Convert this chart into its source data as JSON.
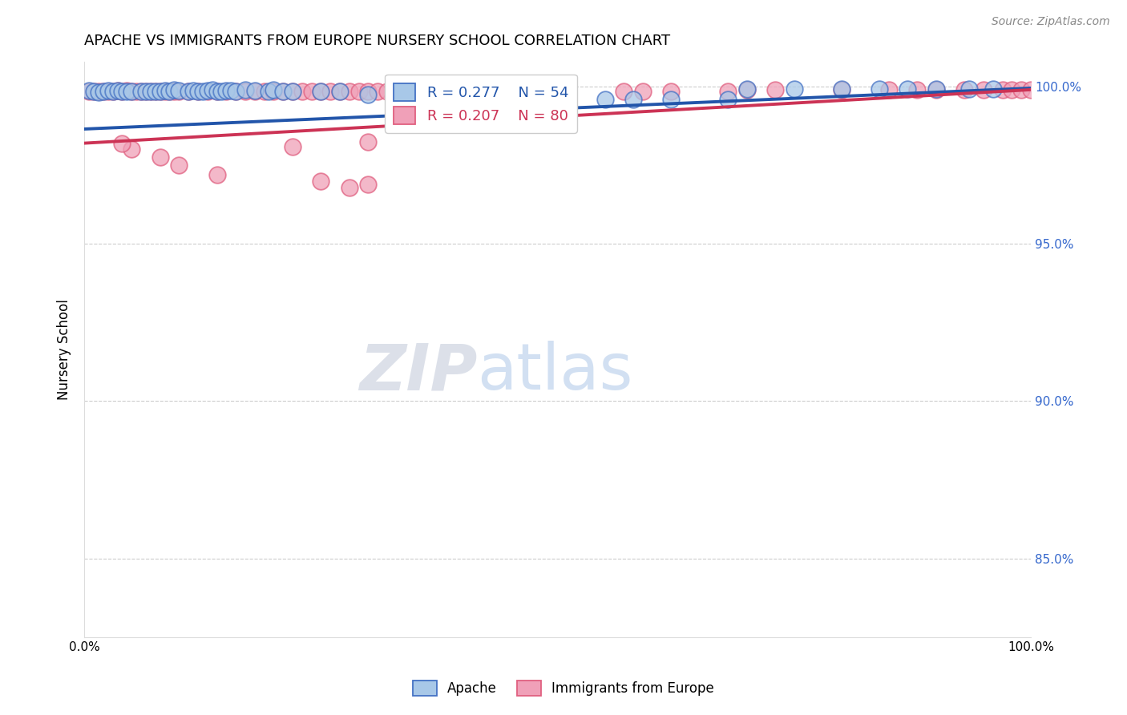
{
  "title": "APACHE VS IMMIGRANTS FROM EUROPE NURSERY SCHOOL CORRELATION CHART",
  "source": "Source: ZipAtlas.com",
  "ylabel": "Nursery School",
  "xlim": [
    0.0,
    1.0
  ],
  "ylim": [
    0.825,
    1.008
  ],
  "yticks": [
    0.85,
    0.9,
    0.95,
    1.0
  ],
  "ytick_labels": [
    "85.0%",
    "90.0%",
    "95.0%",
    "100.0%"
  ],
  "legend_blue_R": "R = 0.277",
  "legend_blue_N": "N = 54",
  "legend_pink_R": "R = 0.207",
  "legend_pink_N": "N = 80",
  "legend_label_blue": "Apache",
  "legend_label_pink": "Immigrants from Europe",
  "blue_color": "#a8c8e8",
  "pink_color": "#f0a0b8",
  "blue_edge_color": "#4472c4",
  "pink_edge_color": "#e06080",
  "blue_line_color": "#2255aa",
  "pink_line_color": "#cc3355",
  "watermark_zip": "ZIP",
  "watermark_atlas": "atlas",
  "blue_trend_x0": 0.0,
  "blue_trend_x1": 1.0,
  "blue_trend_y0": 0.9865,
  "blue_trend_y1": 0.9995,
  "pink_trend_x0": 0.0,
  "pink_trend_x1": 1.0,
  "pink_trend_y0": 0.982,
  "pink_trend_y1": 0.999,
  "apache_x": [
    0.005,
    0.01,
    0.015,
    0.02,
    0.025,
    0.03,
    0.035,
    0.04,
    0.045,
    0.05,
    0.06,
    0.065,
    0.07,
    0.075,
    0.08,
    0.085,
    0.09,
    0.095,
    0.1,
    0.11,
    0.115,
    0.12,
    0.125,
    0.13,
    0.135,
    0.14,
    0.145,
    0.15,
    0.155,
    0.16,
    0.17,
    0.18,
    0.195,
    0.2,
    0.21,
    0.22,
    0.25,
    0.27,
    0.3,
    0.35,
    0.42,
    0.5,
    0.55,
    0.58,
    0.62,
    0.68,
    0.7,
    0.75,
    0.8,
    0.84,
    0.87,
    0.9,
    0.935,
    0.96
  ],
  "apache_y": [
    0.9988,
    0.9985,
    0.9983,
    0.9985,
    0.9988,
    0.9985,
    0.9988,
    0.9985,
    0.9985,
    0.9985,
    0.9985,
    0.9985,
    0.9985,
    0.9985,
    0.9985,
    0.9988,
    0.9985,
    0.999,
    0.9988,
    0.9985,
    0.9988,
    0.9985,
    0.9985,
    0.9988,
    0.999,
    0.9985,
    0.9985,
    0.9988,
    0.9988,
    0.9985,
    0.999,
    0.9988,
    0.9985,
    0.999,
    0.9985,
    0.9985,
    0.9985,
    0.9985,
    0.9975,
    0.998,
    0.996,
    0.996,
    0.996,
    0.996,
    0.996,
    0.996,
    0.9993,
    0.9993,
    0.9993,
    0.9993,
    0.9993,
    0.9993,
    0.9993,
    0.9993
  ],
  "europe_x": [
    0.005,
    0.01,
    0.015,
    0.02,
    0.025,
    0.03,
    0.035,
    0.04,
    0.045,
    0.05,
    0.055,
    0.06,
    0.065,
    0.07,
    0.075,
    0.08,
    0.085,
    0.09,
    0.095,
    0.1,
    0.11,
    0.12,
    0.13,
    0.14,
    0.15,
    0.16,
    0.17,
    0.18,
    0.19,
    0.2,
    0.21,
    0.22,
    0.23,
    0.24,
    0.25,
    0.26,
    0.27,
    0.28,
    0.29,
    0.3,
    0.31,
    0.32,
    0.33,
    0.34,
    0.35,
    0.36,
    0.37,
    0.38,
    0.395,
    0.41,
    0.43,
    0.44,
    0.47,
    0.5,
    0.57,
    0.59,
    0.62,
    0.68,
    0.7,
    0.73,
    0.8,
    0.85,
    0.88,
    0.9,
    0.93,
    0.95,
    0.97,
    0.98,
    0.99,
    1.0,
    0.22,
    0.3,
    0.25,
    0.14,
    0.1,
    0.08,
    0.05,
    0.04,
    0.3,
    0.28
  ],
  "europe_y": [
    0.9985,
    0.9985,
    0.9985,
    0.9985,
    0.9985,
    0.9985,
    0.9988,
    0.9985,
    0.9988,
    0.9985,
    0.9985,
    0.9985,
    0.9985,
    0.9985,
    0.9985,
    0.9985,
    0.9985,
    0.9985,
    0.9985,
    0.9985,
    0.9985,
    0.9985,
    0.9985,
    0.9985,
    0.9985,
    0.9985,
    0.9985,
    0.9985,
    0.9985,
    0.9985,
    0.9985,
    0.9985,
    0.9985,
    0.9985,
    0.9985,
    0.9985,
    0.9985,
    0.9985,
    0.9985,
    0.9985,
    0.9985,
    0.9985,
    0.9985,
    0.9985,
    0.9985,
    0.9985,
    0.9985,
    0.9985,
    0.9985,
    0.9985,
    0.9985,
    0.9985,
    0.9985,
    0.9985,
    0.9985,
    0.9985,
    0.9985,
    0.9985,
    0.999,
    0.999,
    0.999,
    0.999,
    0.999,
    0.999,
    0.999,
    0.999,
    0.999,
    0.999,
    0.999,
    0.999,
    0.981,
    0.9825,
    0.97,
    0.972,
    0.975,
    0.9775,
    0.98,
    0.982,
    0.969,
    0.968
  ]
}
